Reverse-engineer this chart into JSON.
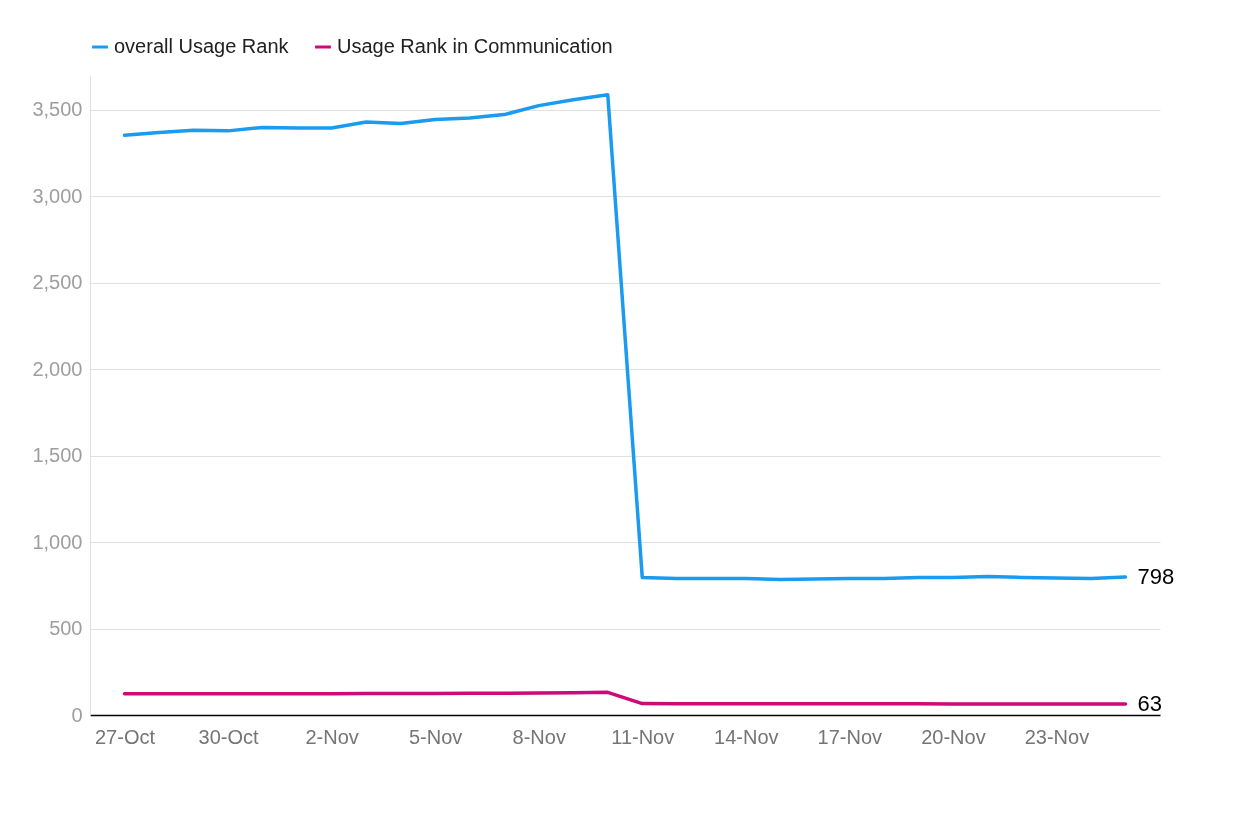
{
  "chart_data": {
    "type": "line",
    "x": [
      "--10-27",
      "--10-28",
      "--10-29",
      "--10-30",
      "--10-31",
      "--11-01",
      "--11-02",
      "--11-03",
      "--11-04",
      "--11-05",
      "--11-06",
      "--11-07",
      "--11-08",
      "--11-09",
      "--11-10",
      "--11-11",
      "--11-12",
      "--11-13",
      "--11-14",
      "--11-15",
      "--11-16",
      "--11-17",
      "--11-18",
      "--11-19",
      "--11-20",
      "--11-21",
      "--11-22",
      "--11-23",
      "--11-24",
      "--11-25"
    ],
    "series": [
      {
        "name": "overall Usage Rank",
        "color": "#1a9bf0",
        "values": [
          3351,
          3368,
          3380,
          3377,
          3397,
          3394,
          3394,
          3428,
          3420,
          3443,
          3451,
          3471,
          3523,
          3557,
          3586,
          795,
          789,
          789,
          789,
          783,
          786,
          789,
          789,
          795,
          795,
          801,
          795,
          792,
          789,
          798
        ],
        "value_labels": [
          null,
          null,
          null,
          null,
          null,
          null,
          null,
          null,
          null,
          null,
          null,
          null,
          null,
          null,
          null,
          null,
          null,
          null,
          null,
          null,
          null,
          null,
          null,
          null,
          null,
          null,
          null,
          null,
          null,
          "798"
        ]
      },
      {
        "name": "Usage Rank in Communication",
        "color": "#cc0a7a",
        "values": [
          123,
          123,
          123,
          123,
          123,
          123,
          123,
          124,
          124,
          125,
          126,
          126,
          127,
          128,
          131,
          66,
          65,
          65,
          65,
          65,
          65,
          65,
          65,
          65,
          64,
          64,
          64,
          64,
          64,
          63
        ],
        "value_labels": [
          null,
          null,
          null,
          null,
          null,
          null,
          null,
          null,
          null,
          null,
          null,
          null,
          null,
          null,
          null,
          null,
          null,
          null,
          null,
          null,
          null,
          null,
          null,
          null,
          null,
          null,
          null,
          null,
          null,
          "63"
        ]
      }
    ],
    "xlim": [
      "--10-26",
      "--11-26"
    ],
    "xticks": [
      {
        "value": "--10-27",
        "label": "27-Oct"
      },
      {
        "value": "--10-30",
        "label": "30-Oct"
      },
      {
        "value": "--11-02",
        "label": "2-Nov"
      },
      {
        "value": "--11-05",
        "label": "5-Nov"
      },
      {
        "value": "--11-08",
        "label": "8-Nov"
      },
      {
        "value": "--11-11",
        "label": "11-Nov"
      },
      {
        "value": "--11-14",
        "label": "14-Nov"
      },
      {
        "value": "--11-17",
        "label": "17-Nov"
      },
      {
        "value": "--11-20",
        "label": "20-Nov"
      },
      {
        "value": "--11-23",
        "label": "23-Nov"
      }
    ],
    "ylim": [
      0,
      3700
    ],
    "yticks": [
      {
        "value": 0,
        "label": "0"
      },
      {
        "value": 500,
        "label": "500"
      },
      {
        "value": 1000,
        "label": "1,000"
      },
      {
        "value": 1500,
        "label": "1,500"
      },
      {
        "value": 2000,
        "label": "2,000"
      },
      {
        "value": 2500,
        "label": "2,500"
      },
      {
        "value": 3000,
        "label": "3,000"
      },
      {
        "value": 3500,
        "label": "3,500"
      }
    ],
    "grid": "y",
    "legend": "top left",
    "marker": "none",
    "line_style": "solid"
  }
}
